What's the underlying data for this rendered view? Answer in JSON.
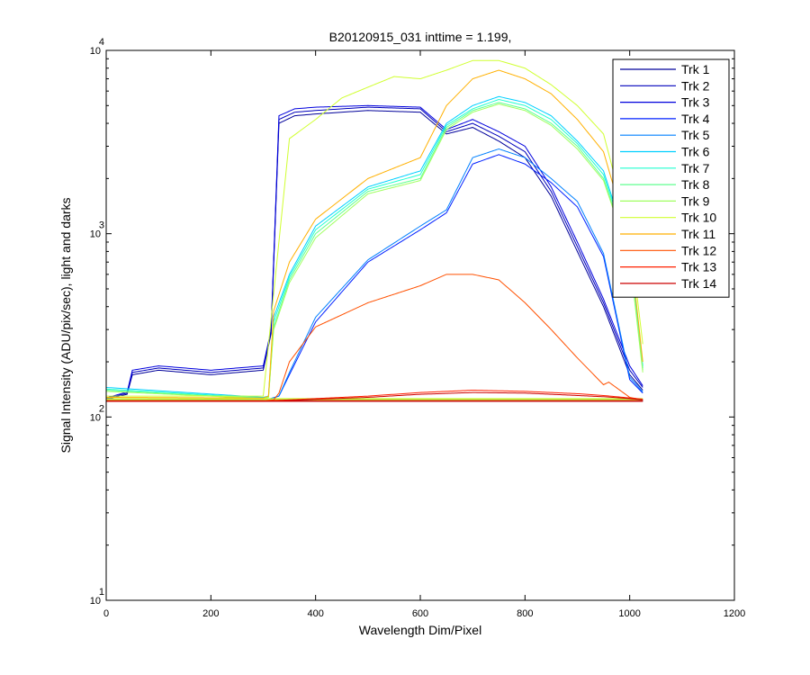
{
  "chart_data": {
    "type": "line",
    "title": "B20120915_031 inttime = 1.199,",
    "xlabel": "Wavelength Dim/Pixel",
    "ylabel": "Signal Intensity (ADU/pix/sec), light and darks",
    "xlim": [
      0,
      1200
    ],
    "ylim": [
      10,
      10000
    ],
    "yscale": "log",
    "xticks": [
      0,
      200,
      400,
      600,
      800,
      1000,
      1200
    ],
    "xtick_labels": [
      "0",
      "200",
      "400",
      "600",
      "800",
      "1000",
      "1200"
    ],
    "yticks": [
      {
        "value": 10,
        "base": "10",
        "exp": "1"
      },
      {
        "value": 100,
        "base": "10",
        "exp": "2"
      },
      {
        "value": 1000,
        "base": "10",
        "exp": "3"
      },
      {
        "value": 10000,
        "base": "10",
        "exp": "4"
      }
    ],
    "grid": false,
    "legend_position": "top-right",
    "series": [
      {
        "name": "Trk 1",
        "color": "#00009a",
        "x": [
          0,
          40,
          50,
          100,
          150,
          200,
          250,
          300,
          315,
          330,
          360,
          400,
          500,
          600,
          650,
          700,
          750,
          800,
          850,
          900,
          950,
          1000,
          1025
        ],
        "y": [
          125,
          133,
          170,
          180,
          175,
          170,
          175,
          180,
          285,
          4000,
          4400,
          4500,
          4700,
          4600,
          3500,
          3800,
          3200,
          2600,
          1600,
          800,
          400,
          170,
          140
        ],
        "dark": 122
      },
      {
        "name": "Trk 2",
        "color": "#0000bb",
        "x": [
          0,
          40,
          50,
          100,
          150,
          200,
          250,
          300,
          315,
          330,
          360,
          400,
          500,
          600,
          650,
          700,
          750,
          800,
          850,
          900,
          950,
          1000,
          1025
        ],
        "y": [
          126,
          135,
          175,
          185,
          180,
          175,
          180,
          185,
          295,
          4200,
          4600,
          4700,
          4900,
          4800,
          3600,
          4000,
          3400,
          2800,
          1700,
          850,
          420,
          180,
          145
        ],
        "dark": 123
      },
      {
        "name": "Trk 3",
        "color": "#0000dd",
        "x": [
          0,
          40,
          50,
          100,
          150,
          200,
          250,
          300,
          315,
          330,
          360,
          400,
          500,
          600,
          650,
          700,
          750,
          800,
          850,
          900,
          950,
          1000,
          1025
        ],
        "y": [
          127,
          137,
          180,
          190,
          185,
          180,
          185,
          190,
          300,
          4400,
          4800,
          4900,
          5000,
          4900,
          3700,
          4200,
          3600,
          3000,
          1800,
          900,
          440,
          190,
          148
        ],
        "dark": 123
      },
      {
        "name": "Trk 4",
        "color": "#0020ff",
        "x": [
          0,
          300,
          310,
          330,
          350,
          400,
          500,
          600,
          650,
          700,
          750,
          800,
          850,
          900,
          950,
          1000,
          1025
        ],
        "y": [
          122,
          122,
          125,
          130,
          170,
          330,
          700,
          1050,
          1300,
          2400,
          2700,
          2400,
          1900,
          1400,
          750,
          160,
          135
        ],
        "dark": 122
      },
      {
        "name": "Trk 5",
        "color": "#0080ff",
        "x": [
          0,
          300,
          310,
          330,
          350,
          400,
          500,
          600,
          650,
          700,
          750,
          800,
          850,
          900,
          950,
          1000,
          1025
        ],
        "y": [
          122,
          122,
          125,
          130,
          175,
          350,
          720,
          1100,
          1350,
          2600,
          2900,
          2600,
          2000,
          1500,
          780,
          165,
          137
        ],
        "dark": 122
      },
      {
        "name": "Trk 6",
        "color": "#00d0ff",
        "x": [
          0,
          300,
          310,
          320,
          350,
          400,
          500,
          600,
          650,
          700,
          750,
          800,
          850,
          900,
          950,
          1000,
          1025
        ],
        "y": [
          145,
          128,
          130,
          350,
          600,
          1100,
          1800,
          2200,
          4000,
          5000,
          5600,
          5200,
          4400,
          3200,
          2200,
          800,
          190
        ],
        "dark": 125
      },
      {
        "name": "Trk 7",
        "color": "#20ffd0",
        "x": [
          0,
          300,
          310,
          320,
          350,
          400,
          500,
          600,
          650,
          700,
          750,
          800,
          850,
          900,
          950,
          1000,
          1025
        ],
        "y": [
          142,
          127,
          129,
          330,
          580,
          1050,
          1750,
          2100,
          3900,
          4800,
          5400,
          5000,
          4200,
          3100,
          2100,
          780,
          185
        ],
        "dark": 125
      },
      {
        "name": "Trk 8",
        "color": "#60ff90",
        "x": [
          0,
          300,
          310,
          320,
          350,
          400,
          500,
          600,
          650,
          700,
          750,
          800,
          850,
          900,
          950,
          1000,
          1025
        ],
        "y": [
          140,
          126,
          128,
          310,
          560,
          1000,
          1700,
          2000,
          3800,
          4700,
          5200,
          4800,
          4000,
          3000,
          2000,
          760,
          180
        ],
        "dark": 125
      },
      {
        "name": "Trk 9",
        "color": "#a0ff60",
        "x": [
          0,
          300,
          310,
          320,
          350,
          400,
          500,
          600,
          650,
          700,
          750,
          800,
          850,
          900,
          950,
          1000,
          1025
        ],
        "y": [
          138,
          126,
          128,
          300,
          540,
          950,
          1650,
          1950,
          3700,
          4600,
          5100,
          4700,
          3900,
          2900,
          1950,
          740,
          175
        ],
        "dark": 124
      },
      {
        "name": "Trk 10",
        "color": "#d0ff30",
        "x": [
          0,
          300,
          350,
          400,
          450,
          500,
          550,
          600,
          650,
          700,
          750,
          800,
          850,
          900,
          950,
          1000,
          1025
        ],
        "y": [
          130,
          130,
          3300,
          4200,
          5500,
          6300,
          7200,
          7000,
          7800,
          8800,
          8800,
          8000,
          6500,
          5000,
          3500,
          1000,
          250
        ],
        "dark": 126
      },
      {
        "name": "Trk 11",
        "color": "#ffb000",
        "x": [
          0,
          300,
          310,
          320,
          350,
          400,
          500,
          600,
          650,
          700,
          750,
          800,
          850,
          900,
          950,
          1000,
          1025
        ],
        "y": [
          128,
          127,
          130,
          380,
          700,
          1200,
          2000,
          2600,
          5000,
          7000,
          7800,
          7000,
          5800,
          4200,
          2800,
          900,
          200
        ],
        "dark": 124
      },
      {
        "name": "Trk 12",
        "color": "#ff5000",
        "x": [
          0,
          300,
          320,
          330,
          350,
          400,
          500,
          600,
          650,
          700,
          750,
          800,
          850,
          900,
          950,
          960,
          1000,
          1025
        ],
        "y": [
          122,
          122,
          124,
          135,
          200,
          310,
          420,
          520,
          600,
          600,
          560,
          420,
          300,
          210,
          150,
          155,
          128,
          124
        ],
        "dark": 122
      },
      {
        "name": "Trk 13",
        "color": "#ff2000",
        "x": [
          0,
          300,
          350,
          400,
          500,
          600,
          700,
          800,
          900,
          950,
          1000,
          1025
        ],
        "y": [
          122,
          122,
          124,
          126,
          130,
          136,
          140,
          138,
          134,
          131,
          127,
          125
        ],
        "dark": 122
      },
      {
        "name": "Trk 14",
        "color": "#cc0000",
        "x": [
          0,
          300,
          350,
          400,
          500,
          600,
          700,
          800,
          900,
          950,
          1000,
          1025
        ],
        "y": [
          122,
          122,
          123,
          125,
          128,
          133,
          136,
          135,
          131,
          129,
          126,
          124
        ],
        "dark": 122
      }
    ]
  }
}
